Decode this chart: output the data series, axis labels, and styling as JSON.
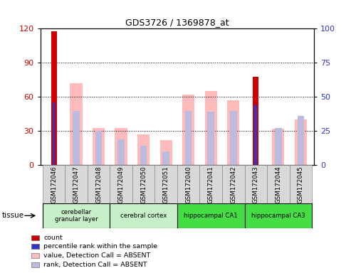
{
  "title": "GDS3726 / 1369878_at",
  "samples": [
    "GSM172046",
    "GSM172047",
    "GSM172048",
    "GSM172049",
    "GSM172050",
    "GSM172051",
    "GSM172040",
    "GSM172041",
    "GSM172042",
    "GSM172043",
    "GSM172044",
    "GSM172045"
  ],
  "count_values": [
    118,
    0,
    0,
    0,
    0,
    0,
    0,
    0,
    0,
    78,
    0,
    0
  ],
  "percentile_rank": [
    46,
    0,
    0,
    0,
    0,
    0,
    0,
    0,
    0,
    44,
    0,
    0
  ],
  "absent_value": [
    0,
    72,
    33,
    33,
    27,
    22,
    62,
    65,
    57,
    0,
    32,
    40
  ],
  "absent_rank": [
    0,
    40,
    25,
    19,
    14,
    10,
    40,
    39,
    40,
    0,
    27,
    36
  ],
  "tissue_groups": [
    {
      "label": "cerebellar\ngranular layer",
      "start": 0,
      "end": 3,
      "color": "#c8f0c8"
    },
    {
      "label": "cerebral cortex",
      "start": 3,
      "end": 6,
      "color": "#c8f0c8"
    },
    {
      "label": "hippocampal CA1",
      "start": 6,
      "end": 9,
      "color": "#44dd44"
    },
    {
      "label": "hippocampal CA3",
      "start": 9,
      "end": 12,
      "color": "#44dd44"
    }
  ],
  "ylim_left": [
    0,
    120
  ],
  "ylim_right": [
    0,
    100
  ],
  "yticks_left": [
    0,
    30,
    60,
    90,
    120
  ],
  "yticks_right": [
    0,
    25,
    50,
    75,
    100
  ],
  "color_count": "#cc0000",
  "color_rank": "#3333cc",
  "color_absent_value": "#ffbbbb",
  "color_absent_rank": "#bbbbdd",
  "absent_bar_width": 0.55,
  "count_bar_width": 0.25,
  "rank_bar_width": 0.12,
  "tissue_arrow_label": "tissue"
}
